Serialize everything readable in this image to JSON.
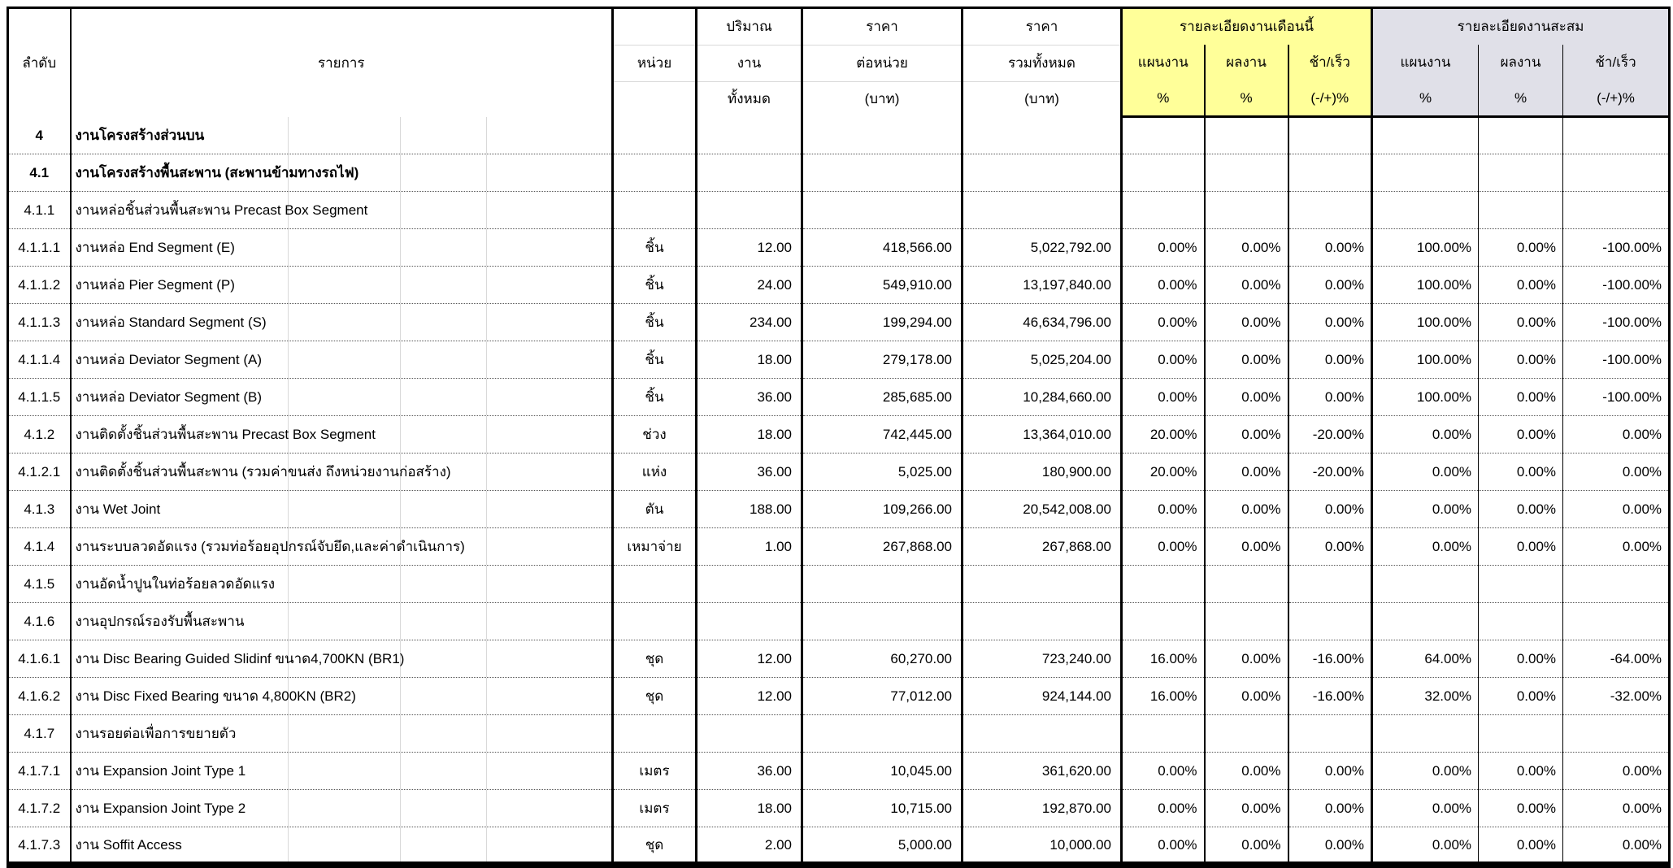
{
  "table": {
    "colors": {
      "month_bg": "#FFFF99",
      "cumulative_bg": "#E0E0E8",
      "border": "#000000"
    },
    "header": {
      "no": "ลำดับ",
      "item": "รายการ",
      "unit": "หน่วย",
      "quantity_lines": [
        "ปริมาณ",
        "งาน",
        "ทั้งหมด"
      ],
      "unit_price_lines": [
        "ราคา",
        "ต่อหน่วย",
        "(บาท)"
      ],
      "total_price_lines": [
        "ราคา",
        "รวมทั้งหมด",
        "(บาท)"
      ],
      "month_group": "รายละเอียดงานเดือนนี้",
      "cumulative_group": "รายละเอียดงานสะสม",
      "sub": {
        "plan": [
          "แผนงาน",
          "%"
        ],
        "actual": [
          "ผลงาน",
          "%"
        ],
        "diff": [
          "ช้า/เร็ว",
          "(-/+)%"
        ]
      }
    },
    "rows": [
      {
        "no": "4",
        "item": "งานโครงสร้างส่วนบน",
        "unit": "",
        "qty": "",
        "up": "",
        "tp": "",
        "mp": "",
        "ma": "",
        "md": "",
        "cp": "",
        "ca": "",
        "cd": "",
        "bold": true
      },
      {
        "no": "4.1",
        "item": "งานโครงสร้างพื้นสะพาน (สะพานข้ามทางรถไฟ)",
        "unit": "",
        "qty": "",
        "up": "",
        "tp": "",
        "mp": "",
        "ma": "",
        "md": "",
        "cp": "",
        "ca": "",
        "cd": "",
        "bold": true
      },
      {
        "no": "4.1.1",
        "item": "งานหล่อชิ้นส่วนพื้นสะพาน Precast Box Segment",
        "unit": "",
        "qty": "",
        "up": "",
        "tp": "",
        "mp": "",
        "ma": "",
        "md": "",
        "cp": "",
        "ca": "",
        "cd": "",
        "bold": false
      },
      {
        "no": "4.1.1.1",
        "item": "งานหล่อ End Segment (E)",
        "unit": "ชิ้น",
        "qty": "12.00",
        "up": "418,566.00",
        "tp": "5,022,792.00",
        "mp": "0.00%",
        "ma": "0.00%",
        "md": "0.00%",
        "cp": "100.00%",
        "ca": "0.00%",
        "cd": "-100.00%",
        "bold": false
      },
      {
        "no": "4.1.1.2",
        "item": "งานหล่อ Pier Segment (P)",
        "unit": "ชิ้น",
        "qty": "24.00",
        "up": "549,910.00",
        "tp": "13,197,840.00",
        "mp": "0.00%",
        "ma": "0.00%",
        "md": "0.00%",
        "cp": "100.00%",
        "ca": "0.00%",
        "cd": "-100.00%",
        "bold": false
      },
      {
        "no": "4.1.1.3",
        "item": "งานหล่อ Standard Segment (S)",
        "unit": "ชิ้น",
        "qty": "234.00",
        "up": "199,294.00",
        "tp": "46,634,796.00",
        "mp": "0.00%",
        "ma": "0.00%",
        "md": "0.00%",
        "cp": "100.00%",
        "ca": "0.00%",
        "cd": "-100.00%",
        "bold": false
      },
      {
        "no": "4.1.1.4",
        "item": "งานหล่อ Deviator Segment (A)",
        "unit": "ชิ้น",
        "qty": "18.00",
        "up": "279,178.00",
        "tp": "5,025,204.00",
        "mp": "0.00%",
        "ma": "0.00%",
        "md": "0.00%",
        "cp": "100.00%",
        "ca": "0.00%",
        "cd": "-100.00%",
        "bold": false
      },
      {
        "no": "4.1.1.5",
        "item": "งานหล่อ Deviator Segment (B)",
        "unit": "ชิ้น",
        "qty": "36.00",
        "up": "285,685.00",
        "tp": "10,284,660.00",
        "mp": "0.00%",
        "ma": "0.00%",
        "md": "0.00%",
        "cp": "100.00%",
        "ca": "0.00%",
        "cd": "-100.00%",
        "bold": false
      },
      {
        "no": "4.1.2",
        "item": "งานติดตั้งชิ้นส่วนพื้นสะพาน Precast Box Segment",
        "unit": "ช่วง",
        "qty": "18.00",
        "up": "742,445.00",
        "tp": "13,364,010.00",
        "mp": "20.00%",
        "ma": "0.00%",
        "md": "-20.00%",
        "cp": "0.00%",
        "ca": "0.00%",
        "cd": "0.00%",
        "bold": false
      },
      {
        "no": "4.1.2.1",
        "item": "งานติดตั้งชิ้นส่วนพื้นสะพาน (รวมค่าขนส่ง ถึงหน่วยงานก่อสร้าง)",
        "unit": "แห่ง",
        "qty": "36.00",
        "up": "5,025.00",
        "tp": "180,900.00",
        "mp": "20.00%",
        "ma": "0.00%",
        "md": "-20.00%",
        "cp": "0.00%",
        "ca": "0.00%",
        "cd": "0.00%",
        "bold": false
      },
      {
        "no": "4.1.3",
        "item": "งาน Wet Joint",
        "unit": "ตัน",
        "qty": "188.00",
        "up": "109,266.00",
        "tp": "20,542,008.00",
        "mp": "0.00%",
        "ma": "0.00%",
        "md": "0.00%",
        "cp": "0.00%",
        "ca": "0.00%",
        "cd": "0.00%",
        "bold": false
      },
      {
        "no": "4.1.4",
        "item": "งานระบบลวดอัดแรง (รวมท่อร้อยอุปกรณ์จับยึด,และค่าดำเนินการ)",
        "unit": "เหมาจ่าย",
        "qty": "1.00",
        "up": "267,868.00",
        "tp": "267,868.00",
        "mp": "0.00%",
        "ma": "0.00%",
        "md": "0.00%",
        "cp": "0.00%",
        "ca": "0.00%",
        "cd": "0.00%",
        "bold": false
      },
      {
        "no": "4.1.5",
        "item": "งานอัดน้ำปูนในท่อร้อยลวดอัดแรง",
        "unit": "",
        "qty": "",
        "up": "",
        "tp": "",
        "mp": "",
        "ma": "",
        "md": "",
        "cp": "",
        "ca": "",
        "cd": "",
        "bold": false
      },
      {
        "no": "4.1.6",
        "item": "งานอุปกรณ์รองรับพื้นสะพาน",
        "unit": "",
        "qty": "",
        "up": "",
        "tp": "",
        "mp": "",
        "ma": "",
        "md": "",
        "cp": "",
        "ca": "",
        "cd": "",
        "bold": false
      },
      {
        "no": "4.1.6.1",
        "item": "งาน Disc Bearing Guided Slidinf ขนาด4,700KN (BR1)",
        "unit": "ชุด",
        "qty": "12.00",
        "up": "60,270.00",
        "tp": "723,240.00",
        "mp": "16.00%",
        "ma": "0.00%",
        "md": "-16.00%",
        "cp": "64.00%",
        "ca": "0.00%",
        "cd": "-64.00%",
        "bold": false
      },
      {
        "no": "4.1.6.2",
        "item": "งาน Disc Fixed Bearing ขนาด 4,800KN (BR2)",
        "unit": "ชุด",
        "qty": "12.00",
        "up": "77,012.00",
        "tp": "924,144.00",
        "mp": "16.00%",
        "ma": "0.00%",
        "md": "-16.00%",
        "cp": "32.00%",
        "ca": "0.00%",
        "cd": "-32.00%",
        "bold": false
      },
      {
        "no": "4.1.7",
        "item": "งานรอยต่อเพื่อการขยายตัว",
        "unit": "",
        "qty": "",
        "up": "",
        "tp": "",
        "mp": "",
        "ma": "",
        "md": "",
        "cp": "",
        "ca": "",
        "cd": "",
        "bold": false
      },
      {
        "no": "4.1.7.1",
        "item": "งาน Expansion Joint Type 1",
        "unit": "เมตร",
        "qty": "36.00",
        "up": "10,045.00",
        "tp": "361,620.00",
        "mp": "0.00%",
        "ma": "0.00%",
        "md": "0.00%",
        "cp": "0.00%",
        "ca": "0.00%",
        "cd": "0.00%",
        "bold": false
      },
      {
        "no": "4.1.7.2",
        "item": "งาน Expansion Joint Type 2",
        "unit": "เมตร",
        "qty": "18.00",
        "up": "10,715.00",
        "tp": "192,870.00",
        "mp": "0.00%",
        "ma": "0.00%",
        "md": "0.00%",
        "cp": "0.00%",
        "ca": "0.00%",
        "cd": "0.00%",
        "bold": false
      },
      {
        "no": "4.1.7.3",
        "item": "งาน Soffit Access",
        "unit": "ชุด",
        "qty": "2.00",
        "up": "5,000.00",
        "tp": "10,000.00",
        "mp": "0.00%",
        "ma": "0.00%",
        "md": "0.00%",
        "cp": "0.00%",
        "ca": "0.00%",
        "cd": "0.00%",
        "bold": false
      }
    ]
  }
}
